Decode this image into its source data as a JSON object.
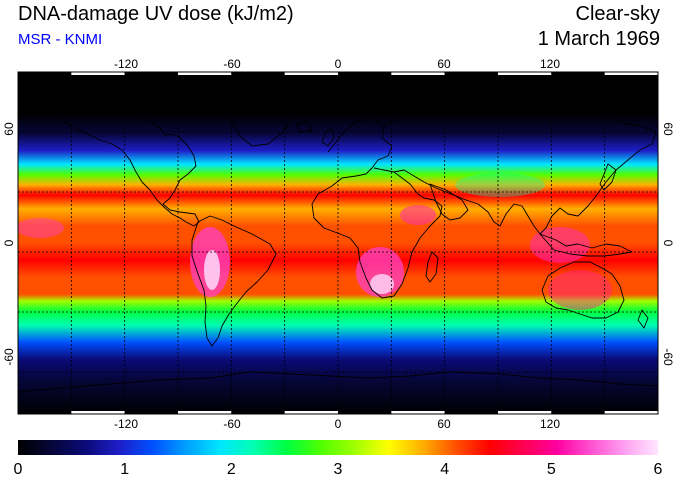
{
  "header": {
    "title": "DNA-damage UV dose (kJ/m2)",
    "subtitle": "MSR - KNMI",
    "sky_condition": "Clear-sky",
    "date": "1 March 1969"
  },
  "colors": {
    "subtitle": "#0000ff",
    "scale": [
      "#000000",
      "#06063a",
      "#0a0a78",
      "#1e1ec8",
      "#0050ff",
      "#00a0ff",
      "#00e6ff",
      "#00ffb0",
      "#00ff40",
      "#50ff00",
      "#a0ff00",
      "#ffff00",
      "#ffb000",
      "#ff5000",
      "#ff0000",
      "#ff0050",
      "#ff00a0",
      "#ff50d0",
      "#ffa0f0",
      "#ffe6ff"
    ]
  },
  "map": {
    "longitude_ticks": [
      "-120",
      "-60",
      "0",
      "60",
      "120"
    ],
    "latitude_ticks": [
      "60",
      "0",
      "-60"
    ],
    "gridlines": true,
    "coastlines": true
  },
  "colorbar": {
    "min": 0,
    "max": 6,
    "labels": [
      "0",
      "1",
      "2",
      "3",
      "4",
      "5",
      "6"
    ]
  }
}
